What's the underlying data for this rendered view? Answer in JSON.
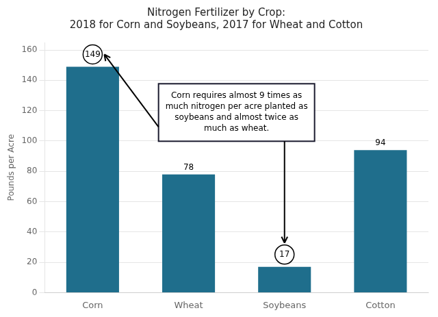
{
  "chart_data": {
    "type": "bar",
    "title": "Nitrogen Fertilizer by Crop:\n2018 for Corn and Soybeans, 2017 for Wheat and Cotton",
    "categories": [
      "Corn",
      "Wheat",
      "Soybeans",
      "Cotton"
    ],
    "values": [
      149,
      78,
      17,
      94
    ],
    "color": "#1f6e8c",
    "ylabel": "Pounds per Acre",
    "ylim": [
      0,
      165
    ],
    "yticks": [
      0,
      20,
      40,
      60,
      80,
      100,
      120,
      140,
      160
    ],
    "grid": true,
    "data_labels": true,
    "annotation": "Corn requires almost 9 times as\nmuch nitrogen per acre planted as\nsoybeans and almost twice as\nmuch as wheat."
  }
}
